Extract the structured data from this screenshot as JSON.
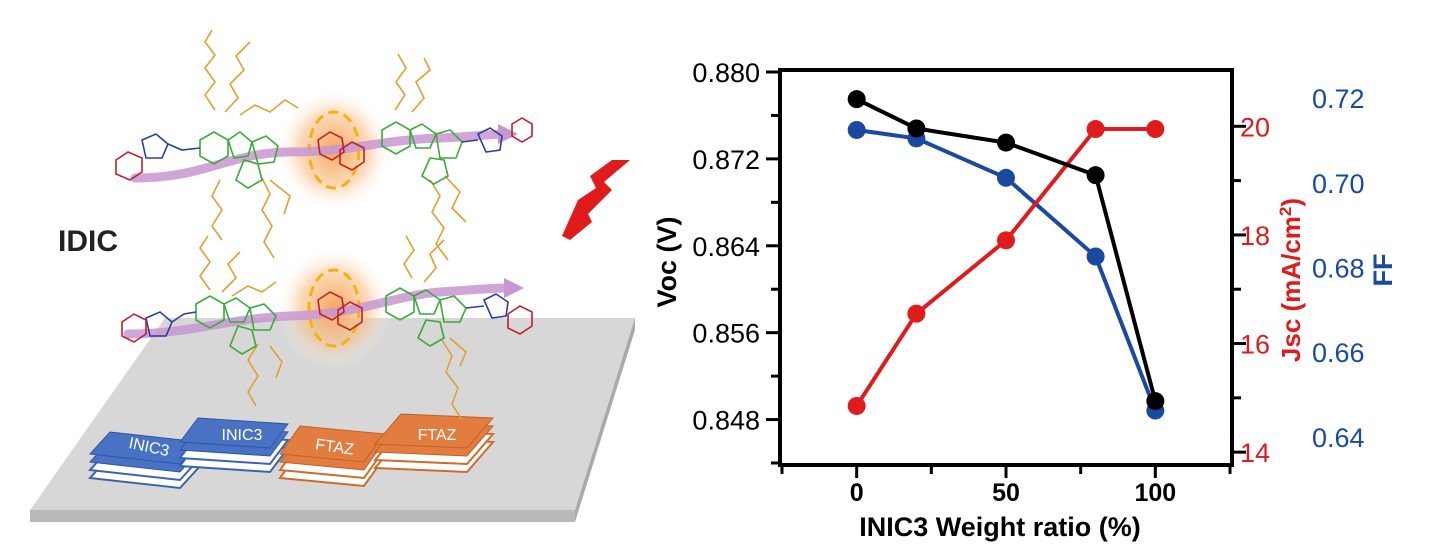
{
  "colors": {
    "voc": "#000000",
    "jsc": "#e01b1b",
    "ff": "#1a4aa0",
    "inic3_stack": "#4a72c4",
    "ftaz_stack": "#e37d3f",
    "backbone": "#c896d2",
    "glow": "#f7a45a",
    "lightning": "#e01b1b",
    "substrate": "#d4d4d4"
  },
  "illustration": {
    "molecule_label": "IDIC",
    "stacks": [
      {
        "label": "INIC3",
        "color_key": "inic3_stack"
      },
      {
        "label": "INIC3",
        "color_key": "inic3_stack"
      },
      {
        "label": "FTAZ",
        "color_key": "ftaz_stack"
      },
      {
        "label": "FTAZ",
        "color_key": "ftaz_stack"
      }
    ],
    "icons": [
      "lightning-icon",
      "substrate-plate",
      "molecule-chain"
    ]
  },
  "chart_data": {
    "type": "line",
    "title": "",
    "xlabel": "INIC3 Weight ratio (%)",
    "xlim": [
      -25,
      125
    ],
    "xticks": [
      0,
      50,
      100
    ],
    "x": [
      0,
      20,
      50,
      80,
      100
    ],
    "grid": false,
    "legend": "none",
    "axes": {
      "left": {
        "label": "Voc (V)",
        "ylim": [
          0.844,
          0.88
        ],
        "ticks": [
          "0.880",
          "0.872",
          "0.864",
          "0.856",
          "0.848"
        ],
        "color": "#000000"
      },
      "right1": {
        "label": "Jsc (mA/cm2)",
        "label_main": "Jsc (mA/cm",
        "label_sup": "2",
        "label_end": ")",
        "ylim": [
          13.8,
          21.0
        ],
        "ticks": [
          "20",
          "18",
          "16",
          "14"
        ],
        "color": "#e01b1b"
      },
      "right2": {
        "label": "FF",
        "ylim": [
          0.6338,
          0.7262
        ],
        "ticks": [
          "0.72",
          "0.70",
          "0.68",
          "0.66",
          "0.64"
        ],
        "color": "#1a4aa0"
      }
    },
    "series": [
      {
        "axis": "left",
        "color_key": "voc",
        "values": [
          0.8775,
          0.8748,
          0.8735,
          0.8705,
          0.8497
        ]
      },
      {
        "axis": "right1",
        "color_key": "jsc",
        "values": [
          14.85,
          16.55,
          17.9,
          19.95,
          19.95
        ]
      },
      {
        "axis": "right2",
        "color_key": "ff",
        "values": [
          0.7125,
          0.7105,
          0.7012,
          0.6826,
          0.6462
        ]
      }
    ]
  }
}
